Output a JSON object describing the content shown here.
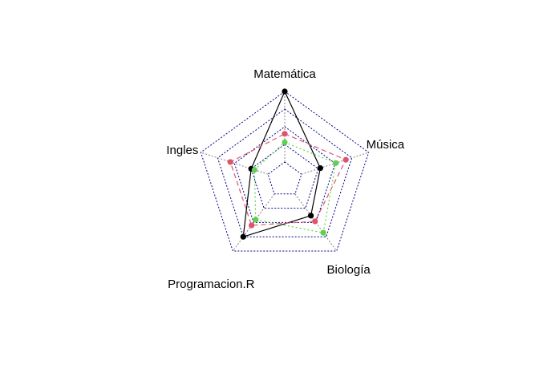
{
  "chart_data": {
    "type": "radar",
    "axes": [
      "Matemática",
      "Música",
      "Biología",
      "Programacion.R",
      "Ingles"
    ],
    "range": [
      0,
      100
    ],
    "grid_levels": 4,
    "series": [
      {
        "color": "#000000",
        "line_style": "solid",
        "values": [
          100,
          28,
          38,
          75,
          25
        ]
      },
      {
        "color": "#DF536B",
        "line_style": "dashed",
        "values": [
          40,
          66,
          48,
          55,
          56
        ]
      },
      {
        "color": "#61D04F",
        "line_style": "dotted",
        "values": [
          28,
          51,
          68,
          45,
          20
        ]
      }
    ],
    "grid_color": "#00008B"
  }
}
